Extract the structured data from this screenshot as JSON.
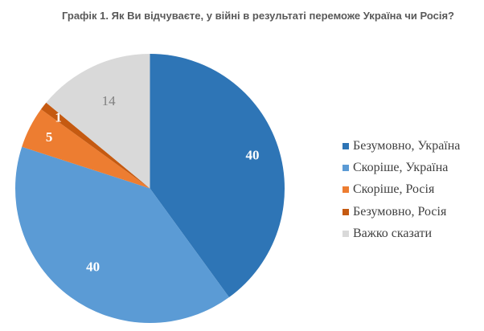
{
  "title": "Графік 1. Як Ви відчуваєте, у війні в результаті переможе Україна чи Росія?",
  "chart_data": {
    "type": "pie",
    "title": "Графік 1. Як Ви відчуваєте, у війні в результаті переможе Україна чи Росія?",
    "categories": [
      "Безумовно, Україна",
      "Скоріше, Україна",
      "Скоріше, Росія",
      "Безумовно, Росія",
      "Важко сказати"
    ],
    "values": [
      40,
      40,
      5,
      1,
      14
    ],
    "colors": [
      "#2e75b6",
      "#5b9bd5",
      "#ed7d31",
      "#c55a11",
      "#d9d9d9"
    ],
    "label_colors": [
      "#ffffff",
      "#ffffff",
      "#ffffff",
      "#ffffff",
      "#808080"
    ],
    "data_labels": [
      "40",
      "40",
      "5",
      "1",
      "14"
    ],
    "start_angle_deg": 0,
    "direction": "clockwise",
    "legend_position": "right"
  },
  "legend": {
    "items": [
      {
        "label": "Безумовно, Україна",
        "color": "#2e75b6"
      },
      {
        "label": "Скоріше, Україна",
        "color": "#5b9bd5"
      },
      {
        "label": "Скоріше, Росія",
        "color": "#ed7d31"
      },
      {
        "label": "Безумовно, Росія",
        "color": "#c55a11"
      },
      {
        "label": "Важко сказати",
        "color": "#d9d9d9"
      }
    ]
  }
}
